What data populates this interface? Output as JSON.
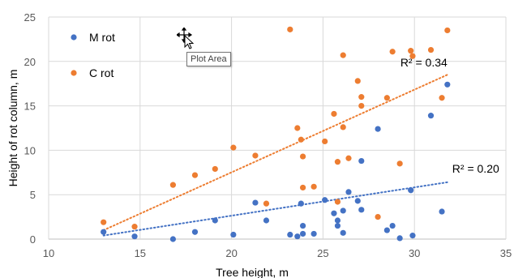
{
  "chart_data": {
    "type": "scatter",
    "title": "",
    "xlabel": "Tree height, m",
    "ylabel": "Height of rot column, m",
    "xlim": [
      10,
      35
    ],
    "ylim": [
      0,
      25
    ],
    "xticks": [
      10,
      15,
      20,
      25,
      30,
      35
    ],
    "yticks": [
      0,
      5,
      10,
      15,
      20,
      25
    ],
    "grid": "horizontal and vertical major gridlines",
    "legend_position": "top-left",
    "series": [
      {
        "name": "M rot",
        "color": "#4472C4",
        "points": [
          [
            13.0,
            0.8
          ],
          [
            14.7,
            0.3
          ],
          [
            16.8,
            0.0
          ],
          [
            18.0,
            0.8
          ],
          [
            19.1,
            2.1
          ],
          [
            20.1,
            0.5
          ],
          [
            21.3,
            4.1
          ],
          [
            21.9,
            2.1
          ],
          [
            23.2,
            0.5
          ],
          [
            23.6,
            0.3
          ],
          [
            23.8,
            4.0
          ],
          [
            23.9,
            1.5
          ],
          [
            23.9,
            0.6
          ],
          [
            24.5,
            0.6
          ],
          [
            25.1,
            4.4
          ],
          [
            25.6,
            2.9
          ],
          [
            25.8,
            2.1
          ],
          [
            25.8,
            1.5
          ],
          [
            26.1,
            3.2
          ],
          [
            26.1,
            0.7
          ],
          [
            26.4,
            5.3
          ],
          [
            26.9,
            4.3
          ],
          [
            27.1,
            8.8
          ],
          [
            27.1,
            3.3
          ],
          [
            28.0,
            12.4
          ],
          [
            28.5,
            1.0
          ],
          [
            28.8,
            1.5
          ],
          [
            29.2,
            0.1
          ],
          [
            29.8,
            5.5
          ],
          [
            29.9,
            0.4
          ],
          [
            30.9,
            13.9
          ],
          [
            31.5,
            3.1
          ],
          [
            31.8,
            17.4
          ]
        ],
        "trendline": {
          "type": "linear",
          "from": [
            13,
            0.4
          ],
          "to": [
            31.8,
            6.4
          ],
          "label": "R² = 0.20"
        }
      },
      {
        "name": "C rot",
        "color": "#ED7D31",
        "points": [
          [
            13.0,
            1.9
          ],
          [
            14.7,
            1.4
          ],
          [
            16.8,
            6.1
          ],
          [
            18.0,
            7.2
          ],
          [
            19.1,
            7.9
          ],
          [
            20.1,
            10.3
          ],
          [
            21.3,
            9.4
          ],
          [
            21.9,
            4.0
          ],
          [
            23.2,
            23.6
          ],
          [
            23.6,
            12.5
          ],
          [
            23.8,
            11.2
          ],
          [
            23.9,
            9.3
          ],
          [
            23.9,
            5.8
          ],
          [
            24.5,
            5.9
          ],
          [
            25.1,
            11.0
          ],
          [
            25.6,
            14.1
          ],
          [
            25.8,
            8.7
          ],
          [
            25.8,
            4.2
          ],
          [
            26.1,
            20.7
          ],
          [
            26.1,
            12.6
          ],
          [
            26.4,
            9.1
          ],
          [
            26.9,
            17.8
          ],
          [
            27.1,
            16.0
          ],
          [
            27.1,
            15.0
          ],
          [
            28.0,
            2.5
          ],
          [
            28.5,
            15.9
          ],
          [
            28.8,
            21.1
          ],
          [
            29.2,
            8.5
          ],
          [
            29.8,
            21.2
          ],
          [
            29.9,
            20.6
          ],
          [
            30.9,
            21.3
          ],
          [
            31.5,
            15.9
          ],
          [
            31.8,
            23.5
          ]
        ],
        "trendline": {
          "type": "linear",
          "from": [
            13,
            1.0
          ],
          "to": [
            31.8,
            18.5
          ],
          "label": "R² = 0.34"
        }
      }
    ]
  },
  "tooltip": {
    "text": "Plot Area"
  }
}
